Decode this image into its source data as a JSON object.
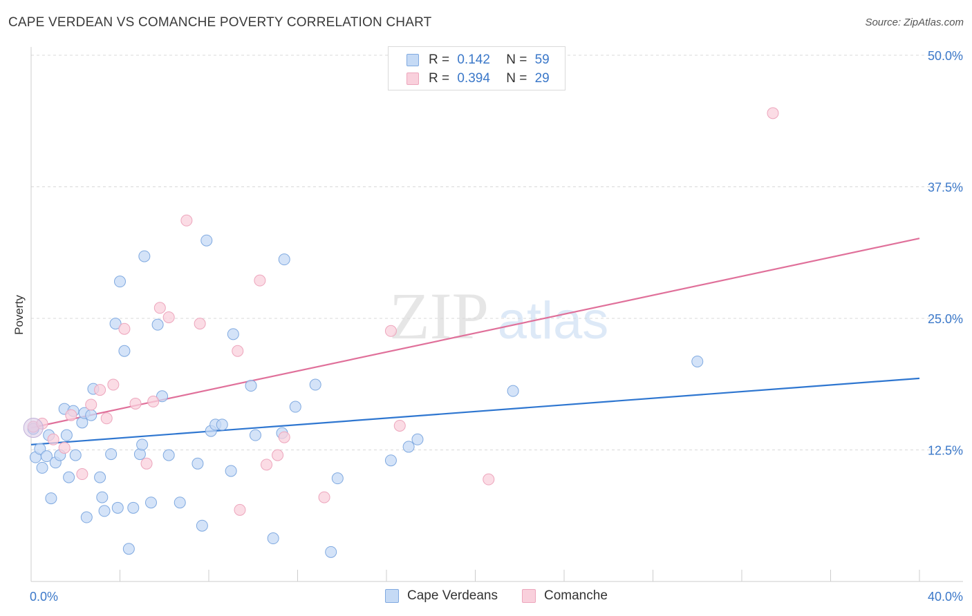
{
  "title": "CAPE VERDEAN VS COMANCHE POVERTY CORRELATION CHART",
  "source": "Source: ZipAtlas.com",
  "watermark": {
    "zip": "ZIP",
    "atlas": "atlas"
  },
  "legend": {
    "rows": [
      {
        "r_label": "R =",
        "r_value": "0.142",
        "n_label": "N =",
        "n_value": "59"
      },
      {
        "r_label": "R =",
        "r_value": "0.394",
        "n_label": "N =",
        "n_value": "29"
      }
    ]
  },
  "bottom_legend": [
    {
      "label": "Cape Verdeans"
    },
    {
      "label": "Comanche"
    }
  ],
  "colors": {
    "blue_fill": "#c5daf5",
    "blue_stroke": "#7fa9e0",
    "blue_line": "#2e76d0",
    "pink_fill": "#f9d0dc",
    "pink_stroke": "#eda5bc",
    "pink_line": "#e0709a",
    "tick_text": "#3b78c9",
    "grid": "#d8d8d8"
  },
  "chart_data": {
    "type": "scatter",
    "title": "CAPE VERDEAN VS COMANCHE POVERTY CORRELATION CHART",
    "xlabel": "",
    "ylabel": "Poverty",
    "xlim": [
      0,
      40
    ],
    "ylim": [
      0,
      50
    ],
    "x_tick_labels": [
      {
        "value": 0,
        "label": "0.0%"
      },
      {
        "value": 40,
        "label": "40.0%"
      }
    ],
    "y_tick_labels": [
      {
        "value": 12.5,
        "label": "12.5%"
      },
      {
        "value": 25,
        "label": "25.0%"
      },
      {
        "value": 37.5,
        "label": "37.5%"
      },
      {
        "value": 50,
        "label": "50.0%"
      }
    ],
    "grid": true,
    "legend_position": "top-center",
    "series": [
      {
        "name": "Cape Verdeans",
        "R": 0.142,
        "N": 59,
        "trend": {
          "x": [
            0,
            40
          ],
          "y": [
            13.0,
            19.3
          ]
        },
        "points": [
          [
            0.1,
            14.5
          ],
          [
            0.2,
            11.8
          ],
          [
            0.4,
            12.6
          ],
          [
            0.5,
            10.8
          ],
          [
            0.7,
            11.9
          ],
          [
            0.8,
            13.9
          ],
          [
            0.9,
            7.9
          ],
          [
            1.1,
            11.3
          ],
          [
            1.3,
            12.0
          ],
          [
            1.5,
            16.4
          ],
          [
            1.6,
            13.9
          ],
          [
            1.7,
            9.9
          ],
          [
            1.9,
            16.2
          ],
          [
            2.0,
            12.0
          ],
          [
            2.3,
            15.1
          ],
          [
            2.4,
            16.0
          ],
          [
            2.5,
            6.1
          ],
          [
            2.7,
            15.8
          ],
          [
            2.8,
            18.3
          ],
          [
            3.1,
            9.9
          ],
          [
            3.2,
            8.0
          ],
          [
            3.3,
            6.7
          ],
          [
            3.6,
            12.1
          ],
          [
            3.8,
            24.5
          ],
          [
            3.9,
            7.0
          ],
          [
            4.0,
            28.5
          ],
          [
            4.2,
            21.9
          ],
          [
            4.4,
            3.1
          ],
          [
            4.6,
            7.0
          ],
          [
            4.9,
            12.1
          ],
          [
            5.0,
            13.0
          ],
          [
            5.1,
            30.9
          ],
          [
            5.4,
            7.5
          ],
          [
            5.7,
            24.4
          ],
          [
            5.9,
            17.6
          ],
          [
            6.2,
            12.0
          ],
          [
            6.7,
            7.5
          ],
          [
            7.5,
            11.2
          ],
          [
            7.7,
            5.3
          ],
          [
            7.9,
            32.4
          ],
          [
            8.1,
            14.3
          ],
          [
            8.3,
            14.9
          ],
          [
            8.6,
            14.9
          ],
          [
            9.0,
            10.5
          ],
          [
            9.1,
            23.5
          ],
          [
            9.9,
            18.6
          ],
          [
            10.1,
            13.9
          ],
          [
            10.9,
            4.1
          ],
          [
            11.3,
            14.1
          ],
          [
            11.4,
            30.6
          ],
          [
            11.9,
            16.6
          ],
          [
            12.8,
            18.7
          ],
          [
            13.5,
            2.8
          ],
          [
            13.8,
            9.8
          ],
          [
            16.2,
            11.5
          ],
          [
            17.0,
            12.8
          ],
          [
            17.4,
            13.5
          ],
          [
            21.7,
            18.1
          ],
          [
            30.0,
            20.9
          ]
        ]
      },
      {
        "name": "Comanche",
        "R": 0.394,
        "N": 29,
        "trend": {
          "x": [
            0,
            40
          ],
          "y": [
            14.6,
            32.6
          ]
        },
        "points": [
          [
            0.1,
            14.7
          ],
          [
            0.5,
            15.0
          ],
          [
            1.0,
            13.5
          ],
          [
            1.5,
            12.7
          ],
          [
            1.8,
            15.8
          ],
          [
            2.3,
            10.2
          ],
          [
            2.7,
            16.8
          ],
          [
            3.1,
            18.2
          ],
          [
            3.4,
            15.5
          ],
          [
            3.7,
            18.7
          ],
          [
            4.2,
            24.0
          ],
          [
            4.7,
            16.9
          ],
          [
            5.2,
            11.2
          ],
          [
            5.5,
            17.1
          ],
          [
            5.8,
            26.0
          ],
          [
            6.2,
            25.1
          ],
          [
            7.0,
            34.3
          ],
          [
            7.6,
            24.5
          ],
          [
            9.3,
            21.9
          ],
          [
            9.4,
            6.8
          ],
          [
            10.3,
            28.6
          ],
          [
            10.6,
            11.1
          ],
          [
            11.1,
            12.0
          ],
          [
            11.4,
            13.7
          ],
          [
            13.2,
            8.0
          ],
          [
            16.2,
            23.8
          ],
          [
            16.6,
            14.8
          ],
          [
            20.6,
            9.7
          ],
          [
            33.4,
            44.5
          ]
        ]
      }
    ]
  }
}
